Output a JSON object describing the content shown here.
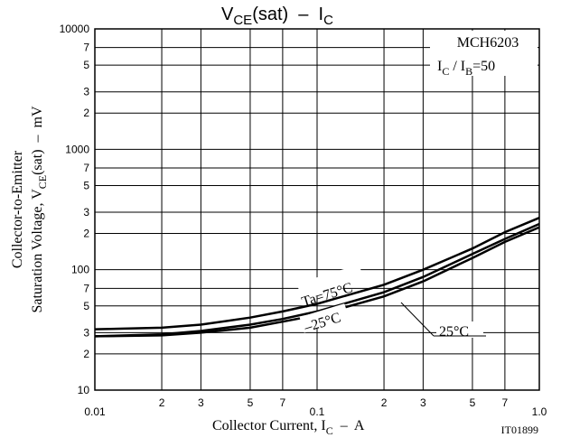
{
  "chart_data": {
    "type": "line",
    "title": [
      "V",
      "CE",
      "(sat)  –  I",
      "C"
    ],
    "x_label": [
      "Collector Current, I",
      "C",
      "  –  A"
    ],
    "y_label": [
      [
        "Collector-to-Emitter"
      ],
      [
        "Saturation Voltage, V",
        "CE",
        "(sat)  –  mV"
      ]
    ],
    "annotations": {
      "part": "MCH6203",
      "condition": [
        "I",
        "C",
        " / I",
        "B",
        "=50"
      ],
      "code": "IT01899"
    },
    "x": [
      0.01,
      0.02,
      0.03,
      0.05,
      0.07,
      0.1,
      0.2,
      0.3,
      0.5,
      0.7,
      1.0
    ],
    "series": [
      {
        "name": "Ta=75°C",
        "color": "#000000",
        "values": [
          32,
          33,
          35,
          40,
          45,
          52,
          75,
          100,
          150,
          205,
          270
        ]
      },
      {
        "name": "25°C",
        "color": "#000000",
        "values": [
          28,
          29,
          31,
          35,
          39,
          45,
          65,
          87,
          135,
          180,
          240
        ]
      },
      {
        "name": "–25°C",
        "color": "#000000",
        "values": [
          28,
          28.5,
          30,
          33,
          37,
          42,
          60,
          80,
          125,
          170,
          225
        ]
      }
    ],
    "xlim": [
      0.01,
      1.0
    ],
    "ylim": [
      10,
      10000
    ],
    "log_x": true,
    "log_y": true,
    "grid": true,
    "xticks": [
      0.01,
      {
        "value": 0.02,
        "label": "2"
      },
      {
        "value": 0.03,
        "label": "3"
      },
      {
        "value": 0.05,
        "label": "5"
      },
      {
        "value": 0.07,
        "label": "7"
      },
      0.1,
      {
        "value": 0.2,
        "label": "2"
      },
      {
        "value": 0.3,
        "label": "3"
      },
      {
        "value": 0.5,
        "label": "5"
      },
      {
        "value": 0.7,
        "label": "7"
      },
      {
        "value": 1,
        "label": "1.0"
      }
    ],
    "yticks": [
      10,
      {
        "value": 20,
        "label": "2"
      },
      {
        "value": 30,
        "label": "3"
      },
      {
        "value": 50,
        "label": "5"
      },
      {
        "value": 70,
        "label": "7"
      },
      100,
      {
        "value": 200,
        "label": "2"
      },
      {
        "value": 300,
        "label": "3"
      },
      {
        "value": 500,
        "label": "5"
      },
      {
        "value": 700,
        "label": "7"
      },
      1000,
      {
        "value": 2000,
        "label": "2"
      },
      {
        "value": 3000,
        "label": "3"
      },
      {
        "value": 5000,
        "label": "5"
      },
      {
        "value": 7000,
        "label": "7"
      },
      10000
    ]
  }
}
